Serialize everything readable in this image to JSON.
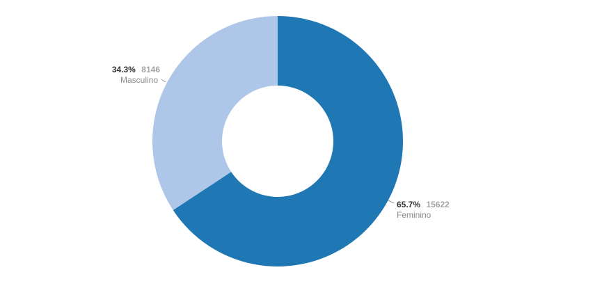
{
  "chart_data": {
    "type": "pie",
    "variant": "donut",
    "title": "",
    "slices": [
      {
        "label": "Feminino",
        "value": 15622,
        "percent_label": "65.7%",
        "value_label": "15622",
        "color": "#1f77b4"
      },
      {
        "label": "Masculino",
        "value": 8146,
        "percent_label": "34.3%",
        "value_label": "8146",
        "color": "#aec7e8"
      }
    ]
  }
}
